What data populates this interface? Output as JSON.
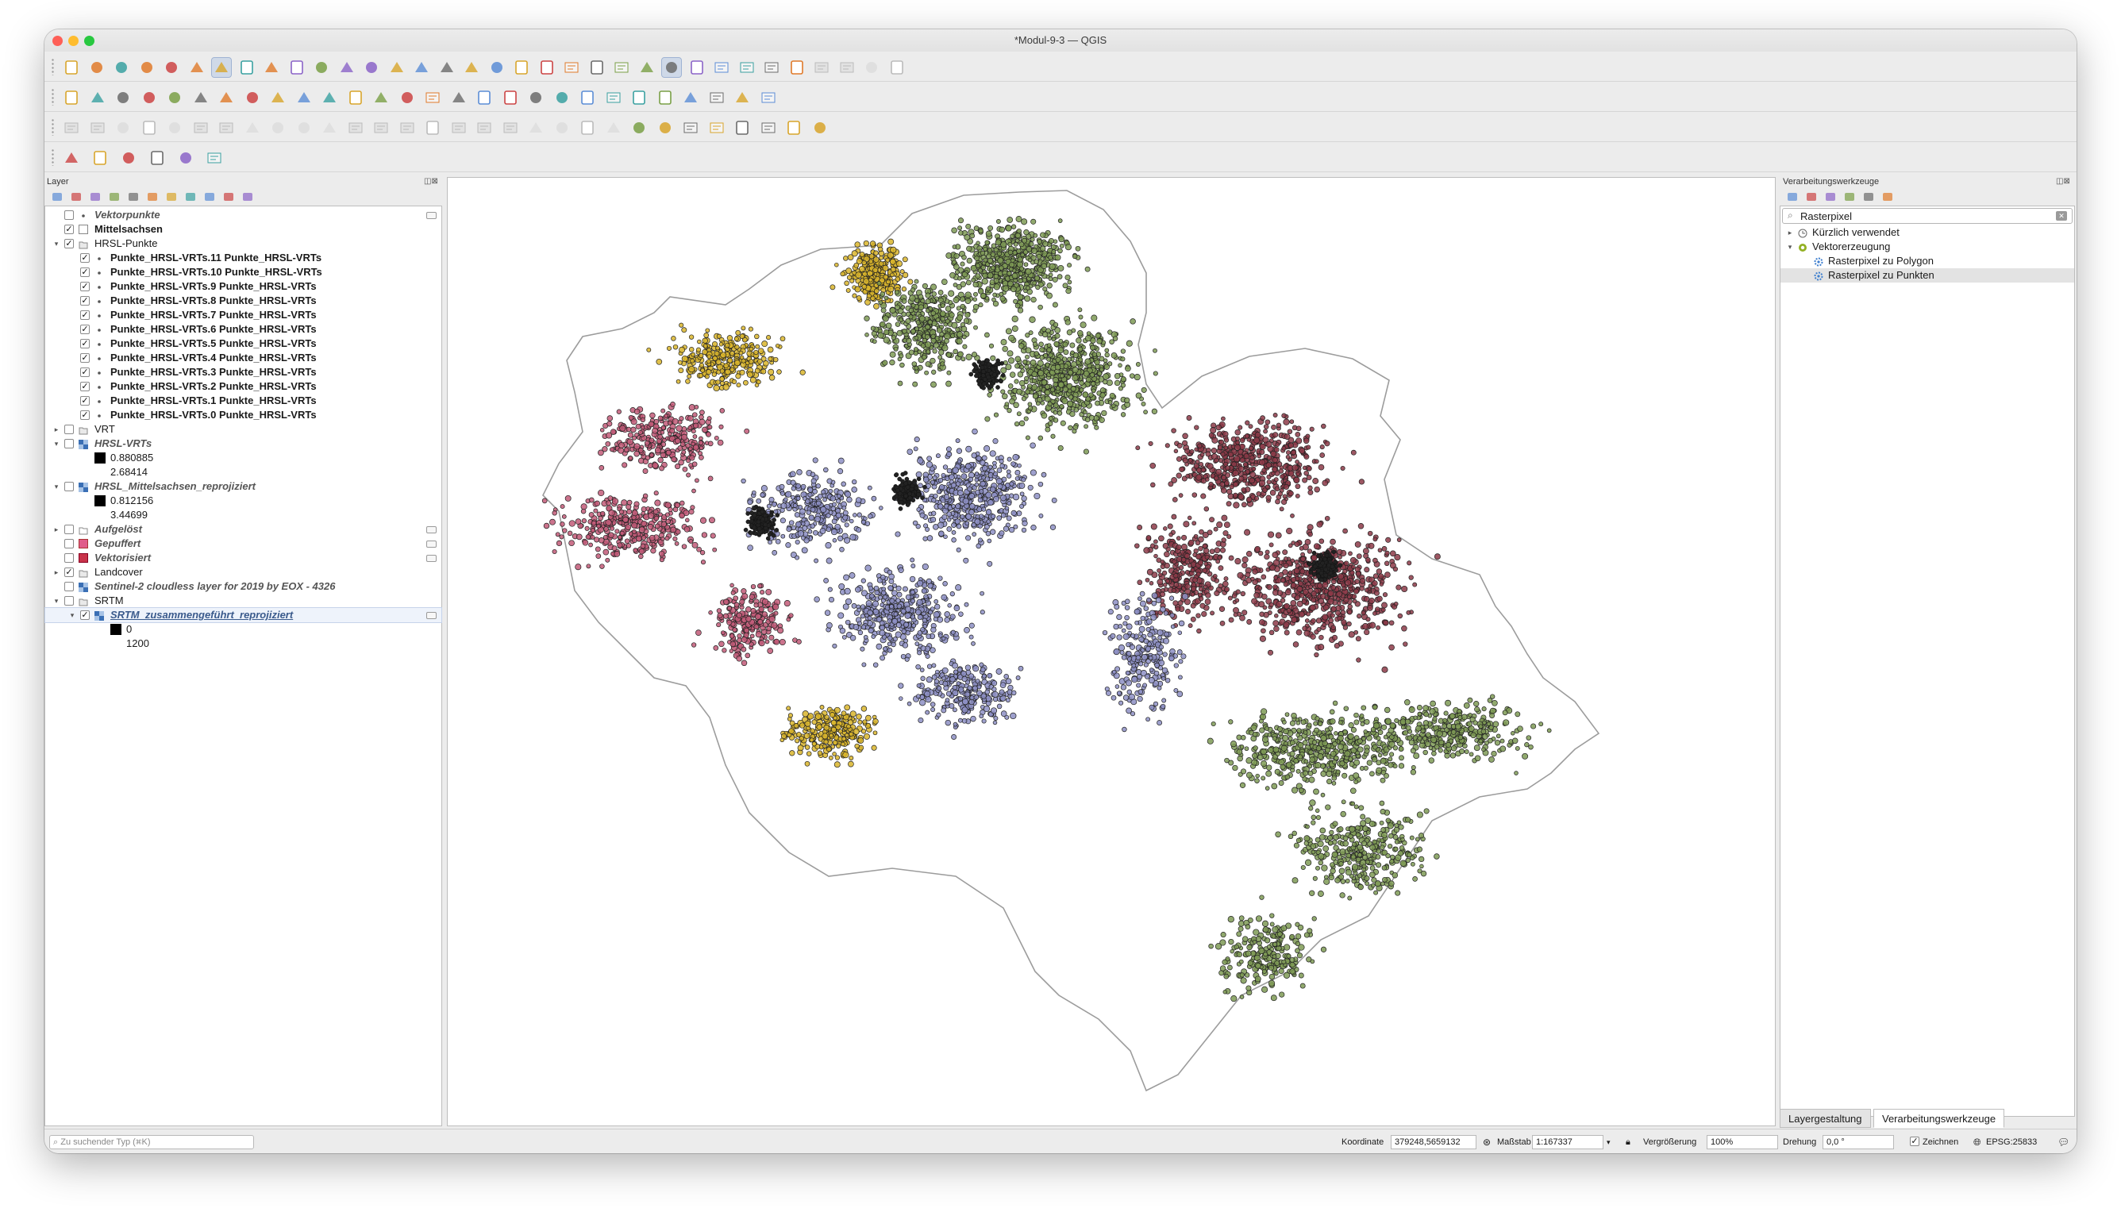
{
  "window": {
    "title": "*Modul-9-3 — QGIS"
  },
  "layers_panel": {
    "title": "Layer",
    "rows": [
      {
        "name": "Vektorpunkte",
        "level": 0,
        "arrow": "",
        "checked": false,
        "style": "ital",
        "icon": "point-layer-icon"
      },
      {
        "name": "Mittelsachsen",
        "level": 0,
        "arrow": "",
        "checked": true,
        "style": "bold",
        "icon": "polygon-layer-icon"
      },
      {
        "name": "HRSL-Punkte",
        "level": 0,
        "arrow": "down",
        "checked": true,
        "style": "",
        "icon": "group-icon"
      },
      {
        "name": "Punkte_HRSL-VRTs.11 Punkte_HRSL-VRTs",
        "level": 1,
        "arrow": "",
        "checked": true,
        "style": "bold",
        "icon": "point-layer-icon"
      },
      {
        "name": "Punkte_HRSL-VRTs.10 Punkte_HRSL-VRTs",
        "level": 1,
        "arrow": "",
        "checked": true,
        "style": "bold",
        "icon": "point-layer-icon"
      },
      {
        "name": "Punkte_HRSL-VRTs.9 Punkte_HRSL-VRTs",
        "level": 1,
        "arrow": "",
        "checked": true,
        "style": "bold",
        "icon": "point-layer-icon"
      },
      {
        "name": "Punkte_HRSL-VRTs.8 Punkte_HRSL-VRTs",
        "level": 1,
        "arrow": "",
        "checked": true,
        "style": "bold",
        "icon": "point-layer-icon"
      },
      {
        "name": "Punkte_HRSL-VRTs.7 Punkte_HRSL-VRTs",
        "level": 1,
        "arrow": "",
        "checked": true,
        "style": "bold",
        "icon": "point-layer-icon"
      },
      {
        "name": "Punkte_HRSL-VRTs.6 Punkte_HRSL-VRTs",
        "level": 1,
        "arrow": "",
        "checked": true,
        "style": "bold",
        "icon": "point-layer-icon"
      },
      {
        "name": "Punkte_HRSL-VRTs.5 Punkte_HRSL-VRTs",
        "level": 1,
        "arrow": "",
        "checked": true,
        "style": "bold",
        "icon": "point-layer-icon"
      },
      {
        "name": "Punkte_HRSL-VRTs.4 Punkte_HRSL-VRTs",
        "level": 1,
        "arrow": "",
        "checked": true,
        "style": "bold",
        "icon": "point-layer-icon"
      },
      {
        "name": "Punkte_HRSL-VRTs.3 Punkte_HRSL-VRTs",
        "level": 1,
        "arrow": "",
        "checked": true,
        "style": "bold",
        "icon": "point-layer-icon"
      },
      {
        "name": "Punkte_HRSL-VRTs.2 Punkte_HRSL-VRTs",
        "level": 1,
        "arrow": "",
        "checked": true,
        "style": "bold",
        "icon": "point-layer-icon"
      },
      {
        "name": "Punkte_HRSL-VRTs.1 Punkte_HRSL-VRTs",
        "level": 1,
        "arrow": "",
        "checked": true,
        "style": "bold",
        "icon": "point-layer-icon"
      },
      {
        "name": "Punkte_HRSL-VRTs.0 Punkte_HRSL-VRTs",
        "level": 1,
        "arrow": "",
        "checked": true,
        "style": "bold",
        "icon": "point-layer-icon"
      },
      {
        "name": "VRT",
        "level": 0,
        "arrow": "right",
        "checked": false,
        "style": "",
        "icon": "group-icon"
      },
      {
        "name": "HRSL-VRTs",
        "level": 0,
        "arrow": "down",
        "checked": false,
        "style": "ital",
        "icon": "raster-layer-icon"
      },
      {
        "name": "0.880885",
        "level": 1,
        "arrow": "",
        "checked": null,
        "style": "legend",
        "icon": "legend-swatch"
      },
      {
        "name": "2.68414",
        "level": 1,
        "arrow": "",
        "checked": null,
        "style": "legend",
        "icon": ""
      },
      {
        "name": "HRSL_Mittelsachsen_reprojiziert",
        "level": 0,
        "arrow": "down",
        "checked": false,
        "style": "ital",
        "icon": "raster-layer-icon"
      },
      {
        "name": "0.812156",
        "level": 1,
        "arrow": "",
        "checked": null,
        "style": "legend",
        "icon": "legend-swatch"
      },
      {
        "name": "3.44699",
        "level": 1,
        "arrow": "",
        "checked": null,
        "style": "legend",
        "icon": ""
      },
      {
        "name": "Aufgelöst",
        "level": 0,
        "arrow": "right",
        "checked": false,
        "style": "ital",
        "icon": "polygon-group-icon"
      },
      {
        "name": "Gepuffert",
        "level": 0,
        "arrow": "",
        "checked": false,
        "style": "ital",
        "icon": "pink-polygon-icon"
      },
      {
        "name": "Vektorisiert",
        "level": 0,
        "arrow": "",
        "checked": false,
        "style": "ital",
        "icon": "red-polygon-icon"
      },
      {
        "name": "Landcover",
        "level": 0,
        "arrow": "right",
        "checked": true,
        "style": "",
        "icon": "group-icon"
      },
      {
        "name": "Sentinel-2 cloudless layer for 2019 by EOX - 4326",
        "level": 0,
        "arrow": "",
        "checked": false,
        "style": "ital",
        "icon": "raster-layer-icon"
      },
      {
        "name": "SRTM",
        "level": 0,
        "arrow": "down",
        "checked": false,
        "style": "",
        "icon": "group-icon"
      },
      {
        "name": "SRTM_zusammengeführt_reprojiziert",
        "level": 1,
        "arrow": "down",
        "checked": true,
        "style": "ital-sel",
        "icon": "raster-layer-icon"
      },
      {
        "name": "0",
        "level": 2,
        "arrow": "",
        "checked": null,
        "style": "legend",
        "icon": "legend-swatch"
      },
      {
        "name": "1200",
        "level": 2,
        "arrow": "",
        "checked": null,
        "style": "legend",
        "icon": ""
      }
    ]
  },
  "processing_panel": {
    "title": "Verarbeitungswerkzeuge",
    "search_value": "Rasterpixel",
    "tree": [
      {
        "label": "Kürzlich verwendet",
        "level": 0,
        "arrow": "right",
        "icon": "clock-icon"
      },
      {
        "label": "Vektorerzeugung",
        "level": 0,
        "arrow": "down",
        "icon": "qgis-icon"
      },
      {
        "label": "Rasterpixel zu Polygon",
        "level": 1,
        "arrow": "",
        "icon": "gear-icon"
      },
      {
        "label": "Rasterpixel zu Punkten",
        "level": 1,
        "arrow": "",
        "icon": "gear-icon",
        "selected": true
      }
    ]
  },
  "tabs": [
    {
      "label": "Layergestaltung"
    },
    {
      "label": "Verarbeitungswerkzeuge",
      "active": true
    }
  ],
  "statusbar": {
    "locator_placeholder": "Zu suchender Typ (⌘K)",
    "coordinate_label": "Koordinate",
    "coordinate_value": "379248,5659132",
    "scale_label": "Maßstab",
    "scale_value": "1:167337",
    "magnifier_label": "Vergrößerung",
    "magnifier_value": "100%",
    "rotation_label": "Drehung",
    "rotation_value": "0,0 °",
    "render_label": "Zeichnen",
    "crs": "EPSG:25833"
  },
  "colors": {
    "accent": "#1f6fd1",
    "cluster_yellow": "#d9b52b",
    "cluster_green": "#7e9a55",
    "cluster_lavender": "#8d8fc4",
    "cluster_pink": "#c25a78",
    "cluster_maroon": "#8c3a48"
  }
}
